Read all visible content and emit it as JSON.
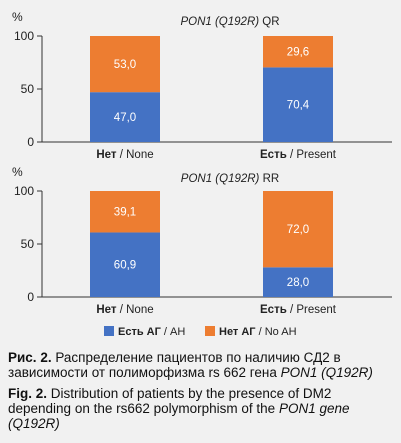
{
  "chart_data": [
    {
      "type": "bar",
      "stacked": true,
      "percent_stacked": true,
      "title_italic": "PON1 (Q192R)",
      "title_rest": "QR",
      "ylabel": "%",
      "ylim": [
        0,
        100
      ],
      "yticks": [
        "100",
        "50",
        "0"
      ],
      "grid": false,
      "categories": [
        {
          "bold": "Нет",
          "rest": " / None"
        },
        {
          "bold": "Есть",
          "rest": " / Present"
        }
      ],
      "series": [
        {
          "key": "ag",
          "values": [
            47.0,
            70.4
          ],
          "labels": [
            "47,0",
            "70,4"
          ]
        },
        {
          "key": "no_ag",
          "values": [
            53.0,
            29.6
          ],
          "labels": [
            "53,0",
            "29,6"
          ]
        }
      ]
    },
    {
      "type": "bar",
      "stacked": true,
      "percent_stacked": true,
      "title_italic": "PON1 (Q192R)",
      "title_rest": "RR",
      "ylabel": "%",
      "ylim": [
        0,
        100
      ],
      "yticks": [
        "100",
        "50",
        "0"
      ],
      "grid": false,
      "categories": [
        {
          "bold": "Нет",
          "rest": " / None"
        },
        {
          "bold": "Есть",
          "rest": " / Present"
        }
      ],
      "series": [
        {
          "key": "ag",
          "values": [
            60.9,
            28.0
          ],
          "labels": [
            "60,9",
            "28,0"
          ]
        },
        {
          "key": "no_ag",
          "values": [
            39.1,
            72.0
          ],
          "labels": [
            "39,1",
            "72,0"
          ]
        }
      ]
    }
  ],
  "legend": {
    "placement": "bottom-center",
    "items": [
      {
        "key": "ag",
        "bold": "Есть АГ",
        "rest": " / AH",
        "color": "#4472c4"
      },
      {
        "key": "no_ag",
        "bold": "Нет АГ",
        "rest": " / No AH",
        "color": "#ed7d31"
      }
    ]
  },
  "colors": {
    "ag": "#4472c4",
    "no_ag": "#ed7d31",
    "axis": "#333333",
    "label_on_bar": "#ffffff"
  },
  "caption": {
    "ru_label": "Рис. 2.",
    "ru_text": " Распределение пациентов по наличию СД2 в зависимости от полиморфизма rs 662 гена ",
    "ru_italic": "PON1 (Q192R)",
    "en_label": "Fig. 2.",
    "en_text": " Distribution of patients by the presence of DM2 depending on the rs662 polymorphism of the ",
    "en_italic": "PON1 gene (Q192R)"
  }
}
